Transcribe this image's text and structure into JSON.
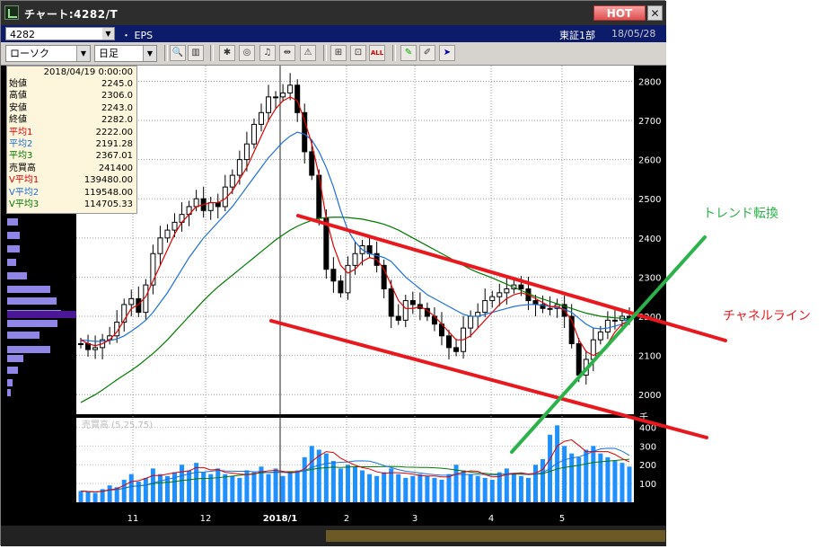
{
  "window": {
    "title": "チャート:4282/T",
    "hot_label": "HOT",
    "close_label": "✕"
  },
  "header": {
    "code": "4282",
    "eps_label": "・ EPS",
    "market": "東証1部",
    "date": "18/05/28"
  },
  "toolbar": {
    "chart_type": "ローソク",
    "period": "日足",
    "icons": [
      "zoom-icon",
      "columns-icon",
      "bomb-icon",
      "search-chart-icon",
      "bell-icon",
      "split-icon",
      "warning-icon",
      "pin-icon",
      "flag-icon",
      "all-icon",
      "pen-icon",
      "eraser-icon",
      "cursor-icon"
    ],
    "all_label": "ALL"
  },
  "info": {
    "datetime": "2018/04/19 0:00:00",
    "rows": [
      {
        "k": "始値",
        "v": "2245.0",
        "c": "#000000"
      },
      {
        "k": "高値",
        "v": "2306.0",
        "c": "#000000"
      },
      {
        "k": "安値",
        "v": "2243.0",
        "c": "#000000"
      },
      {
        "k": "終値",
        "v": "2282.0",
        "c": "#000000"
      },
      {
        "k": "平均1",
        "v": "2222.00",
        "c": "#e00000"
      },
      {
        "k": "平均2",
        "v": "2191.28",
        "c": "#1e6fd8"
      },
      {
        "k": "平均3",
        "v": "2367.01",
        "c": "#007a00"
      },
      {
        "k": "売買高",
        "v": "241400",
        "c": "#000000"
      },
      {
        "k": "V平均1",
        "v": "139480.00",
        "c": "#e00000"
      },
      {
        "k": "V平均2",
        "v": "119548.00",
        "c": "#1e6fd8"
      },
      {
        "k": "V平均3",
        "v": "114705.33",
        "c": "#007a00"
      }
    ]
  },
  "axes": {
    "price_ticks": [
      "2800",
      "2700",
      "2600",
      "2500",
      "2400",
      "2300",
      "2200",
      "2100",
      "2000"
    ],
    "volume_unit": "千",
    "volume_ticks": [
      "400",
      "300",
      "200",
      "100"
    ],
    "volume_label": "売買高 (5,25,75)",
    "x_labels": [
      "11",
      "12",
      "2018/1",
      "2",
      "3",
      "4",
      "5"
    ]
  },
  "annotations": {
    "trend": "トレンド転換",
    "channel": "チャネルライン"
  },
  "colors": {
    "ma_short": "#e00000",
    "ma_mid": "#1e6fd8",
    "ma_long": "#007a00",
    "volume_bar": "#1e90ff",
    "channel_line": "#e8181e",
    "trend_line": "#2cb24a"
  },
  "chart_data": {
    "type": "candlestick",
    "ylim": [
      1950,
      2840
    ],
    "x_ticks": [
      "11",
      "12",
      "2018/1",
      "2",
      "3",
      "4",
      "5"
    ],
    "close": [
      2130,
      2115,
      2120,
      2140,
      2150,
      2185,
      2230,
      2245,
      2210,
      2280,
      2360,
      2400,
      2420,
      2440,
      2460,
      2480,
      2500,
      2470,
      2490,
      2480,
      2530,
      2560,
      2600,
      2640,
      2690,
      2720,
      2760,
      2760,
      2770,
      2790,
      2720,
      2620,
      2560,
      2450,
      2320,
      2290,
      2260,
      2330,
      2360,
      2380,
      2360,
      2330,
      2270,
      2200,
      2190,
      2240,
      2230,
      2220,
      2200,
      2180,
      2150,
      2120,
      2110,
      2170,
      2200,
      2210,
      2240,
      2250,
      2260,
      2270,
      2280,
      2270,
      2240,
      2230,
      2220,
      2220,
      2230,
      2200,
      2130,
      2050,
      2090,
      2140,
      2160,
      2190,
      2190,
      2200,
      2190
    ],
    "ma_short": [
      2140,
      2130,
      2125,
      2130,
      2140,
      2160,
      2190,
      2220,
      2230,
      2250,
      2290,
      2330,
      2370,
      2410,
      2440,
      2460,
      2480,
      2485,
      2490,
      2490,
      2500,
      2520,
      2550,
      2580,
      2620,
      2660,
      2700,
      2730,
      2750,
      2760,
      2750,
      2700,
      2640,
      2560,
      2450,
      2380,
      2330,
      2310,
      2320,
      2340,
      2350,
      2345,
      2320,
      2280,
      2240,
      2220,
      2220,
      2225,
      2215,
      2200,
      2180,
      2160,
      2140,
      2140,
      2150,
      2170,
      2190,
      2210,
      2230,
      2245,
      2255,
      2260,
      2255,
      2245,
      2235,
      2225,
      2225,
      2215,
      2190,
      2140,
      2110,
      2100,
      2110,
      2130,
      2160,
      2180,
      2190
    ],
    "ma_mid": [
      2140,
      2138,
      2136,
      2136,
      2138,
      2142,
      2150,
      2162,
      2175,
      2190,
      2210,
      2235,
      2260,
      2290,
      2320,
      2350,
      2375,
      2400,
      2420,
      2440,
      2460,
      2480,
      2505,
      2530,
      2555,
      2580,
      2605,
      2625,
      2645,
      2660,
      2670,
      2665,
      2650,
      2620,
      2580,
      2530,
      2470,
      2420,
      2390,
      2370,
      2360,
      2355,
      2350,
      2340,
      2320,
      2300,
      2285,
      2270,
      2255,
      2245,
      2235,
      2225,
      2215,
      2205,
      2200,
      2200,
      2205,
      2210,
      2215,
      2220,
      2225,
      2228,
      2230,
      2230,
      2228,
      2225,
      2222,
      2218,
      2210,
      2195,
      2180,
      2170,
      2168,
      2170,
      2175,
      2180,
      2185
    ],
    "ma_long": [
      1980,
      1990,
      2000,
      2012,
      2025,
      2038,
      2050,
      2062,
      2075,
      2090,
      2105,
      2122,
      2140,
      2160,
      2180,
      2200,
      2220,
      2240,
      2258,
      2275,
      2290,
      2305,
      2320,
      2335,
      2350,
      2365,
      2380,
      2395,
      2408,
      2420,
      2430,
      2438,
      2445,
      2450,
      2452,
      2453,
      2453,
      2452,
      2450,
      2448,
      2444,
      2440,
      2435,
      2428,
      2420,
      2410,
      2400,
      2390,
      2380,
      2370,
      2360,
      2350,
      2340,
      2330,
      2320,
      2312,
      2305,
      2298,
      2290,
      2282,
      2274,
      2266,
      2258,
      2250,
      2244,
      2238,
      2232,
      2226,
      2220,
      2214,
      2208,
      2204,
      2200,
      2198,
      2196,
      2195,
      2194
    ],
    "volume": [
      60,
      55,
      50,
      70,
      90,
      80,
      120,
      150,
      110,
      130,
      180,
      150,
      140,
      160,
      200,
      170,
      210,
      160,
      150,
      180,
      150,
      140,
      130,
      170,
      160,
      190,
      150,
      180,
      140,
      160,
      170,
      240,
      300,
      280,
      260,
      220,
      180,
      200,
      190,
      170,
      150,
      140,
      160,
      180,
      150,
      130,
      140,
      150,
      140,
      130,
      120,
      150,
      200,
      170,
      150,
      140,
      130,
      120,
      160,
      180,
      150,
      140,
      130,
      200,
      230,
      360,
      410,
      300,
      260,
      240,
      280,
      300,
      260,
      240,
      220,
      210,
      190
    ],
    "volume_ylim": [
      0,
      450
    ]
  }
}
